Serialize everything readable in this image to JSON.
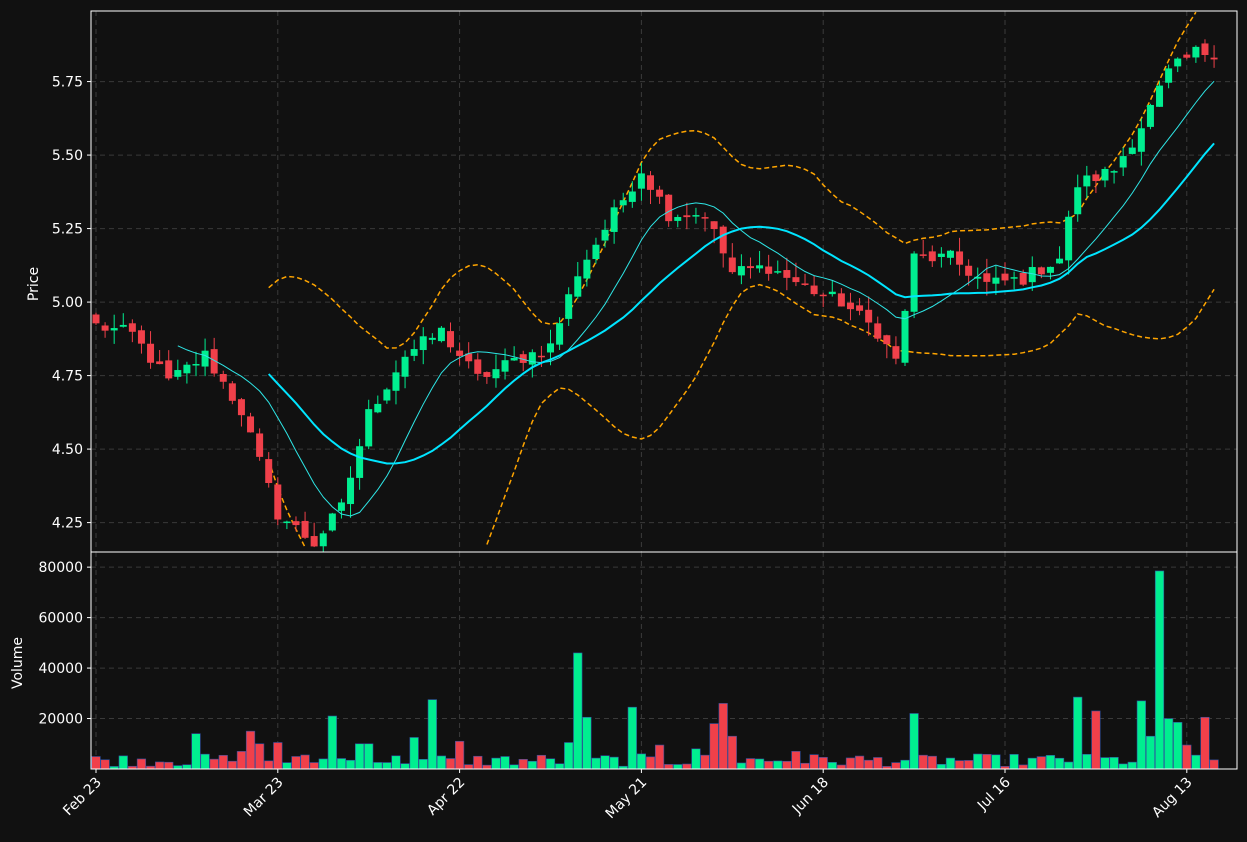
{
  "chart_data": [
    {
      "panel": "price",
      "type": "candlestick",
      "ylabel": "Price",
      "ylim": [
        4.15,
        5.99
      ],
      "y_ticks": [
        "4.25",
        "4.50",
        "4.75",
        "5.00",
        "5.25",
        "5.50",
        "5.75"
      ],
      "x_ticks": [
        {
          "label": "Feb 23",
          "index": 0
        },
        {
          "label": "Mar 23",
          "index": 20
        },
        {
          "label": "Apr 22",
          "index": 40
        },
        {
          "label": "May 21",
          "index": 60
        },
        {
          "label": "Jun 18",
          "index": 80
        },
        {
          "label": "Jul 16",
          "index": 100
        },
        {
          "label": "Aug 13",
          "index": 120
        }
      ],
      "grid": true,
      "bar_count": 124,
      "series": [
        {
          "kind": "moving-average-fast",
          "color": "#2ee6e6"
        },
        {
          "kind": "moving-average-slow",
          "color": "#00e5ff"
        },
        {
          "kind": "bollinger-bands",
          "color": "#ffa500"
        }
      ],
      "anchors": [
        [
          0,
          4.92
        ],
        [
          4,
          4.89
        ],
        [
          8,
          4.73
        ],
        [
          12,
          4.82
        ],
        [
          16,
          4.63
        ],
        [
          20,
          4.28
        ],
        [
          24,
          4.18
        ],
        [
          27,
          4.3
        ],
        [
          30,
          4.62
        ],
        [
          34,
          4.82
        ],
        [
          38,
          4.9
        ],
        [
          42,
          4.74
        ],
        [
          46,
          4.8
        ],
        [
          50,
          4.85
        ],
        [
          53,
          5.1
        ],
        [
          57,
          5.3
        ],
        [
          60,
          5.45
        ],
        [
          63,
          5.3
        ],
        [
          67,
          5.3
        ],
        [
          70,
          5.1
        ],
        [
          74,
          5.12
        ],
        [
          78,
          5.05
        ],
        [
          82,
          5.0
        ],
        [
          86,
          4.9
        ],
        [
          88,
          4.8
        ],
        [
          90,
          5.15
        ],
        [
          94,
          5.15
        ],
        [
          98,
          5.06
        ],
        [
          102,
          5.08
        ],
        [
          106,
          5.15
        ],
        [
          108,
          5.4
        ],
        [
          112,
          5.45
        ],
        [
          115,
          5.6
        ],
        [
          118,
          5.78
        ],
        [
          121,
          5.85
        ],
        [
          123,
          5.85
        ]
      ],
      "up_color": "#00ee90",
      "down_color": "#f0404a"
    },
    {
      "panel": "volume",
      "type": "bar",
      "ylabel": "Volume",
      "ylim": [
        0,
        86000
      ],
      "y_ticks": [
        "20000",
        "40000",
        "60000",
        "80000"
      ],
      "grid": true,
      "spikes": [
        [
          11,
          14000
        ],
        [
          16,
          7000
        ],
        [
          17,
          15000
        ],
        [
          18,
          10000
        ],
        [
          20,
          10500
        ],
        [
          26,
          21000
        ],
        [
          29,
          10000
        ],
        [
          30,
          10000
        ],
        [
          35,
          12500
        ],
        [
          37,
          27500
        ],
        [
          40,
          11000
        ],
        [
          52,
          10500
        ],
        [
          53,
          46000
        ],
        [
          54,
          20500
        ],
        [
          59,
          24500
        ],
        [
          62,
          9500
        ],
        [
          66,
          8000
        ],
        [
          68,
          18000
        ],
        [
          69,
          26000
        ],
        [
          70,
          13000
        ],
        [
          77,
          7000
        ],
        [
          90,
          22000
        ],
        [
          108,
          28500
        ],
        [
          110,
          23000
        ],
        [
          115,
          27000
        ],
        [
          116,
          13000
        ],
        [
          117,
          78500
        ],
        [
          118,
          20000
        ],
        [
          119,
          18500
        ],
        [
          120,
          9500
        ],
        [
          122,
          20500
        ]
      ]
    }
  ]
}
